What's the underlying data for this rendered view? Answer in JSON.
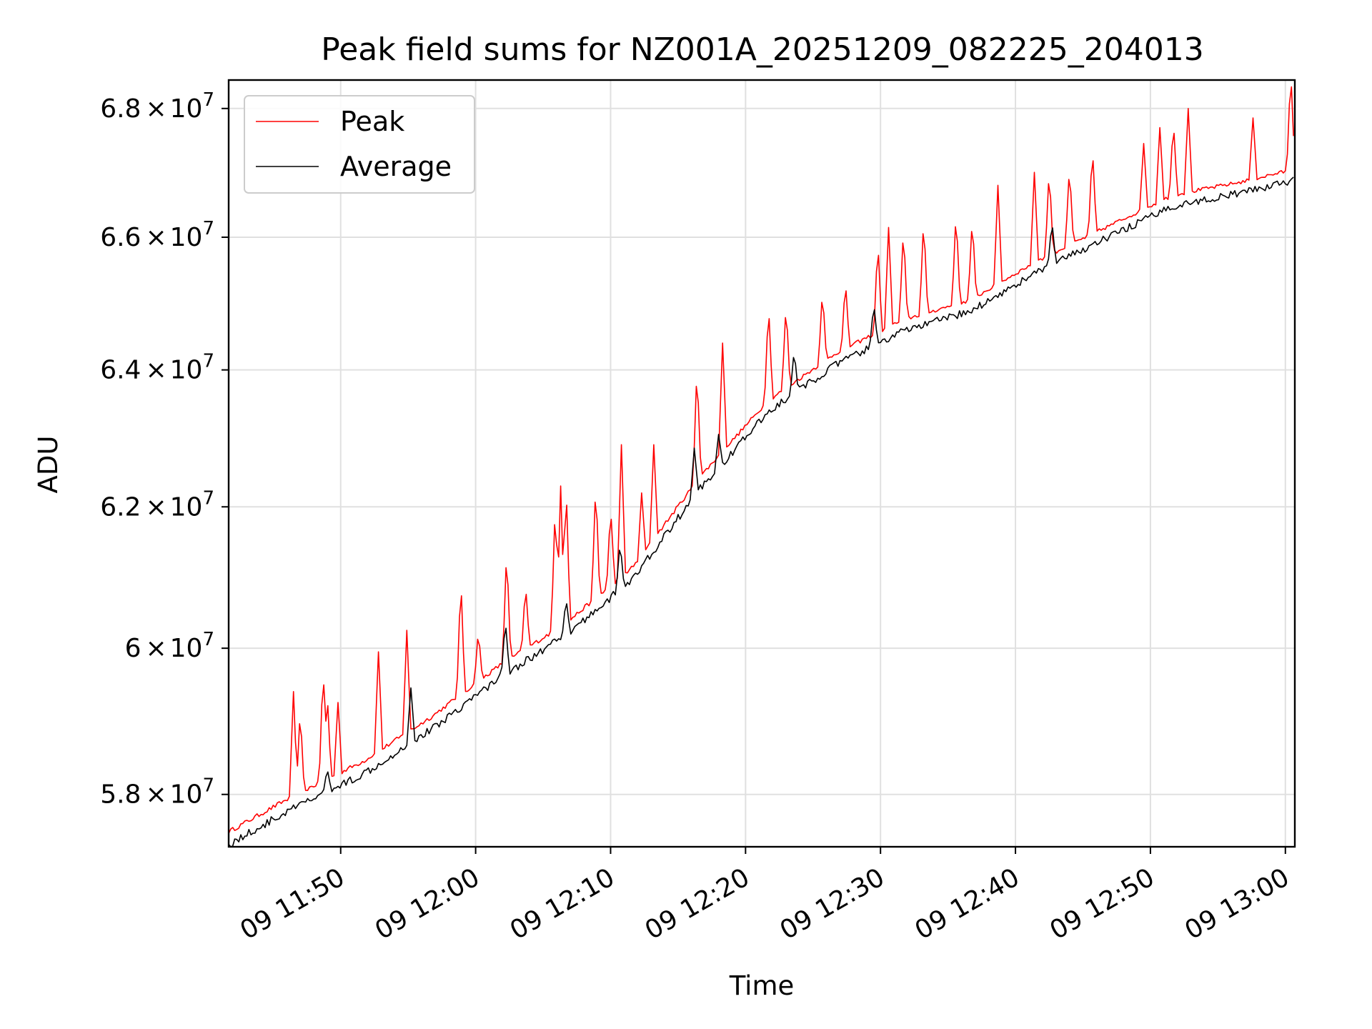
{
  "chart_data": {
    "type": "line",
    "title": "Peak field sums for NZ001A_20251209_082225_204013",
    "xlabel": "Time",
    "ylabel": "ADU",
    "y_scale": "log",
    "x_range_minutes": [
      0,
      79
    ],
    "x_ticks": [
      {
        "minute": 8.3,
        "label": "09 11:50"
      },
      {
        "minute": 18.3,
        "label": "09 12:00"
      },
      {
        "minute": 28.3,
        "label": "09 12:10"
      },
      {
        "minute": 38.3,
        "label": "09 12:20"
      },
      {
        "minute": 48.3,
        "label": "09 12:30"
      },
      {
        "minute": 58.3,
        "label": "09 12:40"
      },
      {
        "minute": 68.3,
        "label": "09 12:50"
      },
      {
        "minute": 78.3,
        "label": "09 13:00"
      }
    ],
    "y_ticks": [
      {
        "value": 58000000,
        "mantissa": "5.8",
        "exponent": "7"
      },
      {
        "value": 60000000,
        "mantissa": "6",
        "exponent": "7"
      },
      {
        "value": 62000000,
        "mantissa": "6.2",
        "exponent": "7"
      },
      {
        "value": 64000000,
        "mantissa": "6.4",
        "exponent": "7"
      },
      {
        "value": 66000000,
        "mantissa": "6.6",
        "exponent": "7"
      },
      {
        "value": 68000000,
        "mantissa": "6.8",
        "exponent": "7"
      }
    ],
    "times_symbol": "×",
    "tick_base": "10",
    "ylim": [
      57300000,
      68450000
    ],
    "grid": true,
    "legend_position": "top-left",
    "baseline": {
      "x": [
        0,
        5,
        10,
        15,
        20,
        25,
        30,
        35,
        40,
        45,
        50,
        55,
        60,
        65,
        70,
        75,
        79
      ],
      "y": [
        57450000,
        57950000,
        58400000,
        59000000,
        59700000,
        60300000,
        61100000,
        62400000,
        63500000,
        64200000,
        64700000,
        65000000,
        65600000,
        66100000,
        66600000,
        66800000,
        67000000
      ]
    },
    "series": [
      {
        "name": "Peak",
        "color": "#ff0000",
        "offset": 50000,
        "spikes": [
          [
            4.8,
            59400000
          ],
          [
            5.3,
            59150000
          ],
          [
            7.0,
            59750000
          ],
          [
            7.3,
            59400000
          ],
          [
            8.1,
            59250000
          ],
          [
            11.1,
            59950000
          ],
          [
            13.2,
            60250000
          ],
          [
            17.2,
            61000000
          ],
          [
            18.5,
            60250000
          ],
          [
            20.6,
            61400000
          ],
          [
            22.0,
            60900000
          ],
          [
            24.2,
            62050000
          ],
          [
            24.6,
            62300000
          ],
          [
            25.0,
            62350000
          ],
          [
            27.2,
            62350000
          ],
          [
            28.3,
            62000000
          ],
          [
            29.1,
            62900000
          ],
          [
            30.6,
            62200000
          ],
          [
            31.5,
            62900000
          ],
          [
            34.7,
            64050000
          ],
          [
            36.6,
            64400000
          ],
          [
            40.0,
            65000000
          ],
          [
            41.3,
            65000000
          ],
          [
            44.0,
            65200000
          ],
          [
            45.7,
            65350000
          ],
          [
            48.1,
            65950000
          ],
          [
            48.9,
            66150000
          ],
          [
            50.0,
            66150000
          ],
          [
            51.5,
            66300000
          ],
          [
            53.9,
            66400000
          ],
          [
            55.1,
            66300000
          ],
          [
            57.0,
            66800000
          ],
          [
            59.7,
            67000000
          ],
          [
            60.8,
            67050000
          ],
          [
            62.3,
            67100000
          ],
          [
            64.0,
            67400000
          ],
          [
            67.8,
            67450000
          ],
          [
            69.0,
            67700000
          ],
          [
            70.0,
            67800000
          ],
          [
            71.1,
            68000000
          ],
          [
            75.9,
            67850000
          ],
          [
            78.7,
            68600000
          ]
        ]
      },
      {
        "name": "Average",
        "color": "#000000",
        "offset": -120000,
        "spikes": [
          [
            7.3,
            58350000
          ],
          [
            13.5,
            59450000
          ],
          [
            20.5,
            60400000
          ],
          [
            25.0,
            60700000
          ],
          [
            29.0,
            61500000
          ],
          [
            34.5,
            62850000
          ],
          [
            36.3,
            63050000
          ],
          [
            41.9,
            64300000
          ],
          [
            47.8,
            65000000
          ],
          [
            61.0,
            66250000
          ],
          [
            78.9,
            66900000
          ]
        ]
      }
    ]
  }
}
